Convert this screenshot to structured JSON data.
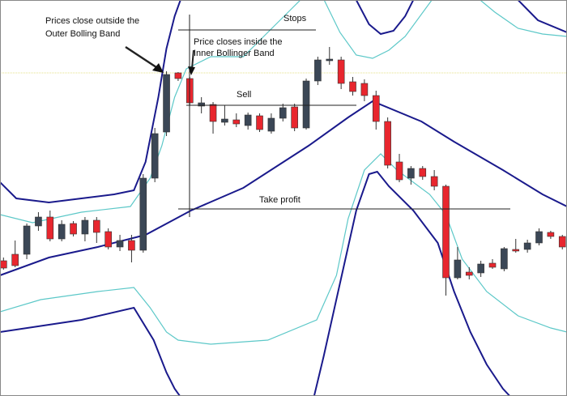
{
  "chart_data": {
    "type": "candlestick",
    "annotations": {
      "outside": [
        "Prices close outside the",
        "Outer Bolling Band"
      ],
      "inside": [
        "Price closes inside the",
        "Inner Bollinger Band"
      ],
      "stops": "Stops",
      "sell": "Sell",
      "take_profit": "Take profit"
    },
    "categories": [
      null,
      null,
      null,
      null,
      null,
      null,
      null,
      null,
      null,
      null,
      null,
      null,
      null,
      null,
      null,
      null,
      null,
      null,
      null,
      null,
      null,
      null,
      null,
      null,
      null,
      null,
      null,
      null,
      null,
      null,
      null,
      null,
      null,
      null,
      null,
      null,
      null,
      null,
      null,
      null,
      null,
      null,
      null,
      null,
      null,
      null,
      null,
      null,
      null
    ],
    "open": [
      167,
      175,
      175,
      210,
      221,
      194,
      213,
      200,
      217,
      203,
      184,
      192,
      180,
      269,
      326,
      399,
      392,
      358,
      360,
      338,
      341,
      334,
      346,
      327,
      343,
      357,
      331,
      389,
      414,
      415,
      388,
      386,
      371,
      339,
      289,
      269,
      281,
      271,
      259,
      146,
      153,
      152,
      164,
      157,
      181,
      181,
      189,
      202,
      197
    ],
    "high": [
      171,
      192,
      213,
      227,
      229,
      217,
      216,
      221,
      221,
      207,
      199,
      199,
      274,
      331,
      401,
      400,
      394,
      369,
      363,
      359,
      349,
      350,
      349,
      349,
      361,
      361,
      392,
      419,
      431,
      419,
      394,
      391,
      377,
      344,
      299,
      284,
      284,
      279,
      261,
      184,
      159,
      167,
      169,
      184,
      194,
      193,
      207,
      204,
      199
    ],
    "low": [
      156,
      159,
      169,
      204,
      191,
      191,
      197,
      191,
      189,
      181,
      179,
      165,
      177,
      264,
      321,
      389,
      359,
      349,
      324,
      334,
      332,
      329,
      326,
      324,
      339,
      327,
      329,
      384,
      409,
      379,
      371,
      364,
      329,
      281,
      264,
      261,
      267,
      254,
      124,
      144,
      144,
      147,
      157,
      154,
      177,
      177,
      186,
      194,
      181
    ],
    "close": [
      158,
      161,
      210,
      221,
      194,
      212,
      200,
      217,
      202,
      184,
      192,
      180,
      269,
      324,
      397,
      392,
      362,
      362,
      339,
      342,
      336,
      347,
      329,
      343,
      356,
      331,
      389,
      415,
      416,
      386,
      376,
      371,
      339,
      285,
      267,
      281,
      271,
      259,
      146,
      168,
      149,
      163,
      159,
      182,
      179,
      189,
      203,
      197,
      184
    ],
    "up_color": "#3b4756",
    "down_color": "#e8262e",
    "xlim": [
      -0.3,
      48.4
    ],
    "ylim": [
      0,
      489
    ],
    "series": [
      {
        "name": null,
        "color": "#1a1a8c",
        "x": [
          -0.3,
          1.1,
          3.9,
          6.7,
          9.5,
          11.2,
          12.2,
          13.3,
          14.0,
          14.7,
          15.7,
          20.0,
          29.0,
          30.3,
          31.4,
          32.4,
          33.5,
          34.5,
          35.9,
          40.0,
          42.9,
          44.2,
          45.9,
          48.4
        ],
        "values": [
          264,
          244,
          239,
          244,
          249,
          254,
          289,
          369,
          429,
          469,
          509,
          null,
          509,
          489,
          459,
          447,
          451,
          469,
          509,
          null,
          509,
          489,
          464,
          449
        ]
      },
      {
        "name": null,
        "color": "#1a1a8c",
        "x": [
          -0.3,
          3.9,
          8.1,
          12.2,
          16.1,
          20.6,
          26.2,
          29.6,
          31.7,
          35.9,
          38.7,
          42.9,
          46.3,
          48.4
        ],
        "values": [
          149,
          171,
          184,
          199,
          229,
          257,
          309,
          344,
          364,
          339,
          314,
          279,
          249,
          234
        ]
      },
      {
        "name": null,
        "color": "#1a1a8c",
        "x": [
          -0.3,
          6.7,
          11.2,
          12.9,
          14.0,
          14.7,
          15.7,
          20.0,
          26.5,
          27.5,
          28.9,
          30.3,
          31.4,
          32.1,
          33.1,
          35.2,
          37.3,
          38.7,
          40.1,
          41.5,
          42.9,
          44.2
        ],
        "values": [
          79,
          94,
          109,
          69,
          29,
          9,
          -11,
          null,
          -11,
          49,
          139,
          229,
          274,
          277,
          259,
          229,
          189,
          129,
          79,
          39,
          9,
          -11
        ]
      },
      {
        "name": null,
        "color": "#5cc8c8",
        "x": [
          -0.3,
          2.5,
          6.7,
          10.9,
          12.6,
          13.6,
          14.7,
          15.7,
          17.8,
          20.6,
          22.7,
          24.8,
          26.2,
          26.7,
          27.2,
          28.9,
          30.3,
          31.7,
          33.1,
          34.5,
          37.3,
          38.7,
          40.1,
          42.2,
          44.2,
          46.3,
          48.4
        ],
        "values": [
          224,
          214,
          227,
          234,
          269,
          309,
          369,
          404,
          419,
          419,
          449,
          479,
          499,
          null,
          499,
          449,
          421,
          417,
          427,
          444,
          499,
          null,
          499,
          474,
          454,
          447,
          444
        ]
      },
      {
        "name": null,
        "color": "#5cc8c8",
        "x": [
          -0.3,
          3.2,
          8.1,
          11.2,
          12.6,
          14.0,
          15.0,
          17.8,
          22.7,
          26.9,
          28.6,
          29.6,
          31.0,
          32.4,
          33.8,
          36.6,
          38.0,
          39.4,
          41.5,
          44.2,
          47.0,
          48.4
        ],
        "values": [
          104,
          119,
          129,
          134,
          109,
          79,
          69,
          64,
          69,
          94,
          149,
          219,
          279,
          299,
          279,
          249,
          224,
          169,
          129,
          99,
          84,
          79
        ]
      }
    ]
  }
}
